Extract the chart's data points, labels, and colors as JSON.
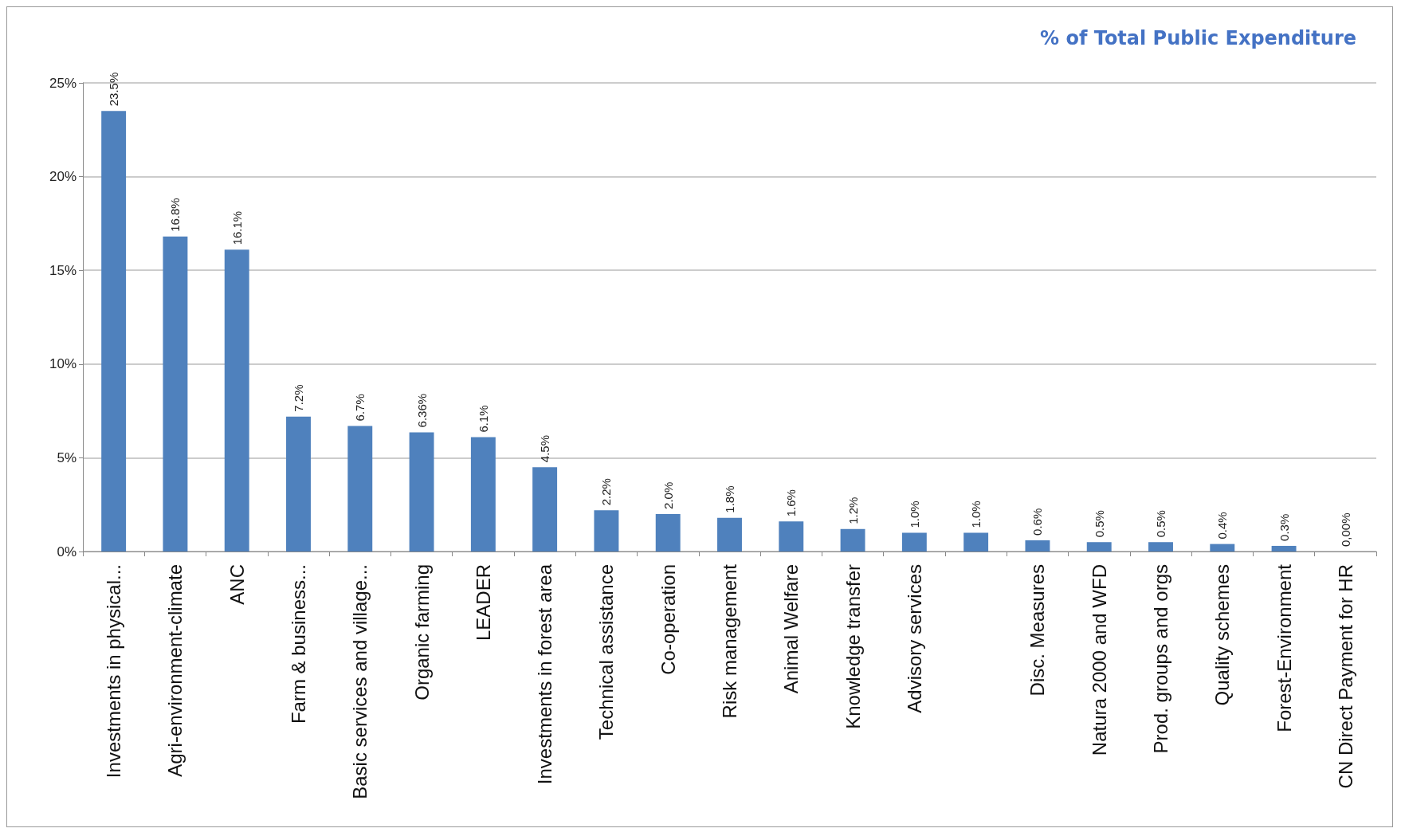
{
  "chart_data": {
    "type": "bar",
    "title": "% of Total Public Expenditure",
    "categories": [
      "Investments in physical...",
      "Agri-environment-climate",
      "ANC",
      "Farm & business...",
      "Basic services and village...",
      "Organic farming",
      "LEADER",
      "Investments in forest area",
      "Technical assistance",
      "Co-operation",
      "Risk management",
      "Animal Welfare",
      "Knowledge transfer",
      "Advisory services",
      null,
      "Disc. Measures",
      "Natura 2000 and WFD",
      "Prod. groups and orgs",
      "Quality schemes",
      "Forest-Environment",
      "CN Direct Payment for HR"
    ],
    "values": [
      23.5,
      16.8,
      16.1,
      7.2,
      6.7,
      6.36,
      6.1,
      4.5,
      2.2,
      2.0,
      1.8,
      1.6,
      1.2,
      1.0,
      1.0,
      0.6,
      0.5,
      0.5,
      0.4,
      0.3,
      0.0
    ],
    "value_labels": [
      "23.5%",
      "16.8%",
      "16.1%",
      "7.2%",
      "6.7%",
      "6.36%",
      "6.1%",
      "4.5%",
      "2.2%",
      "2.0%",
      "1.8%",
      "1.6%",
      "1.2%",
      "1.0%",
      "1.0%",
      "0.6%",
      "0.5%",
      "0.5%",
      "0.4%",
      "0.3%",
      "0,00%"
    ],
    "color": "#4f81bd",
    "ylim": [
      0,
      25
    ],
    "yticks": [
      {
        "value": 0,
        "label": "0%"
      },
      {
        "value": 5,
        "label": "5%"
      },
      {
        "value": 10,
        "label": "10%"
      },
      {
        "value": 15,
        "label": "15%"
      },
      {
        "value": 20,
        "label": "20%"
      },
      {
        "value": 25,
        "label": "25%"
      }
    ],
    "grid": "y"
  }
}
